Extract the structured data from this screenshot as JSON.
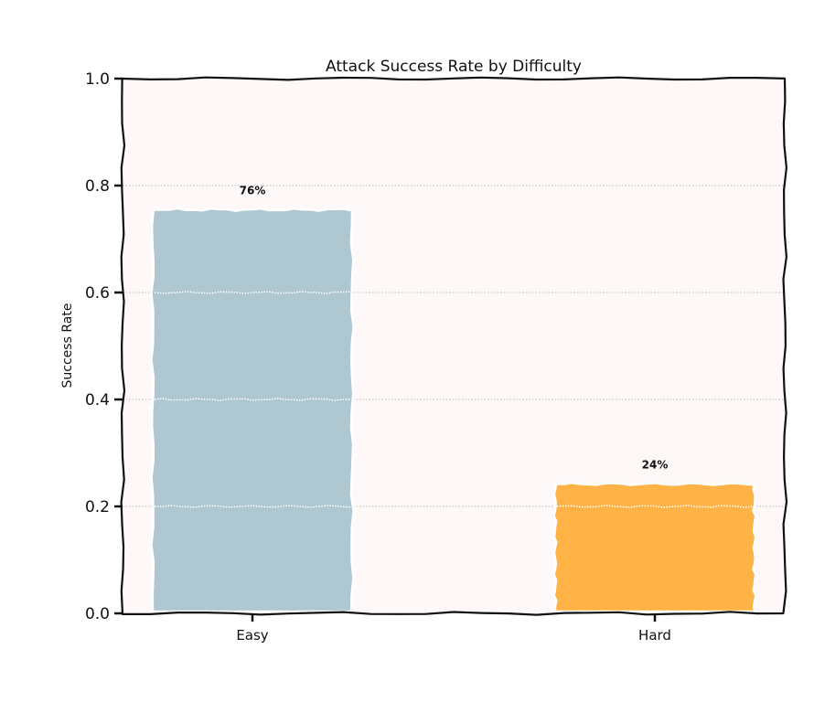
{
  "chart_data": {
    "type": "bar",
    "title": "Attack Success Rate by Difficulty",
    "xlabel": "",
    "ylabel": "Success Rate",
    "categories": [
      "Easy",
      "Hard"
    ],
    "values": [
      0.755,
      0.242
    ],
    "data_labels": [
      "76%",
      "24%"
    ],
    "ylim": [
      0,
      1.0
    ],
    "yticks": [
      0.0,
      0.2,
      0.4,
      0.6,
      0.8,
      1.0
    ],
    "ytick_labels": [
      "0.0",
      "0.2",
      "0.4",
      "0.6",
      "0.8",
      "1.0"
    ],
    "grid": "y, dotted",
    "bar_colors": [
      "#aec7d1",
      "#ffb347"
    ],
    "background_color": "#fff8f8"
  }
}
